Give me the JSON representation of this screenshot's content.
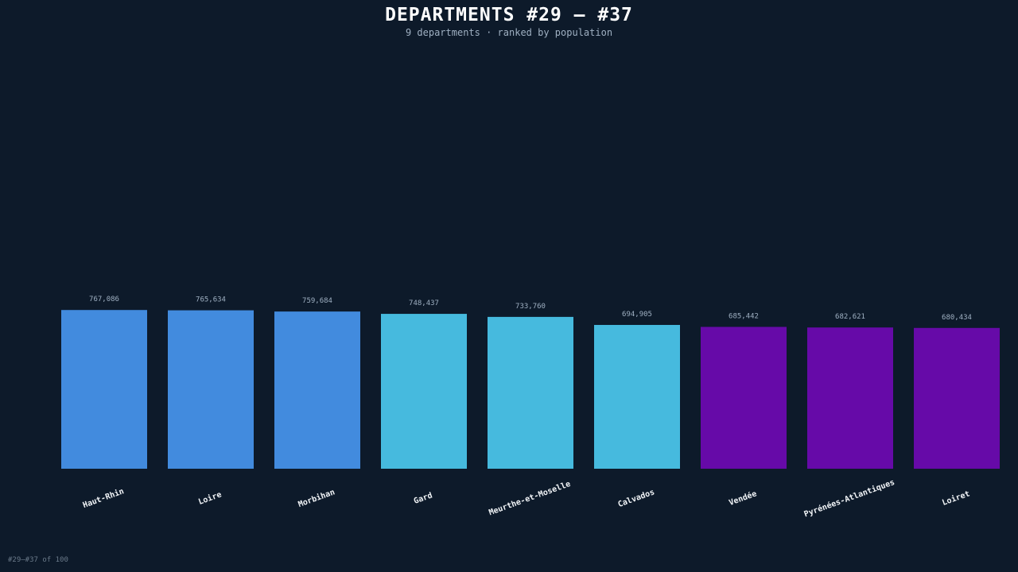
{
  "header": {
    "title": "DEPARTMENTS #29 – #37",
    "subtitle": "9 departments · ranked by population"
  },
  "footer": {
    "text": "#29–#37 of 100"
  },
  "chart_data": {
    "type": "bar",
    "title": "DEPARTMENTS #29 – #37",
    "subtitle": "9 departments · ranked by population",
    "xlabel": "",
    "ylabel": "",
    "grid": false,
    "legend": "none",
    "categories": [
      "Haut-Rhin",
      "Loire",
      "Morbihan",
      "Gard",
      "Meurthe-et-Moselle",
      "Calvados",
      "Vendée",
      "Pyrénées-Atlantiques",
      "Loiret"
    ],
    "values": [
      767086,
      765634,
      759684,
      748437,
      733760,
      694905,
      685442,
      682621,
      680434
    ],
    "value_labels": [
      "767,086",
      "765,634",
      "759,684",
      "748,437",
      "733,760",
      "694,905",
      "685,442",
      "682,621",
      "680,434"
    ],
    "colors": [
      "#428bde",
      "#428bde",
      "#428bde",
      "#46bade",
      "#46bade",
      "#46bade",
      "#660aa8",
      "#660aa8",
      "#660aa8"
    ],
    "ylim": [
      0,
      2200000
    ]
  }
}
